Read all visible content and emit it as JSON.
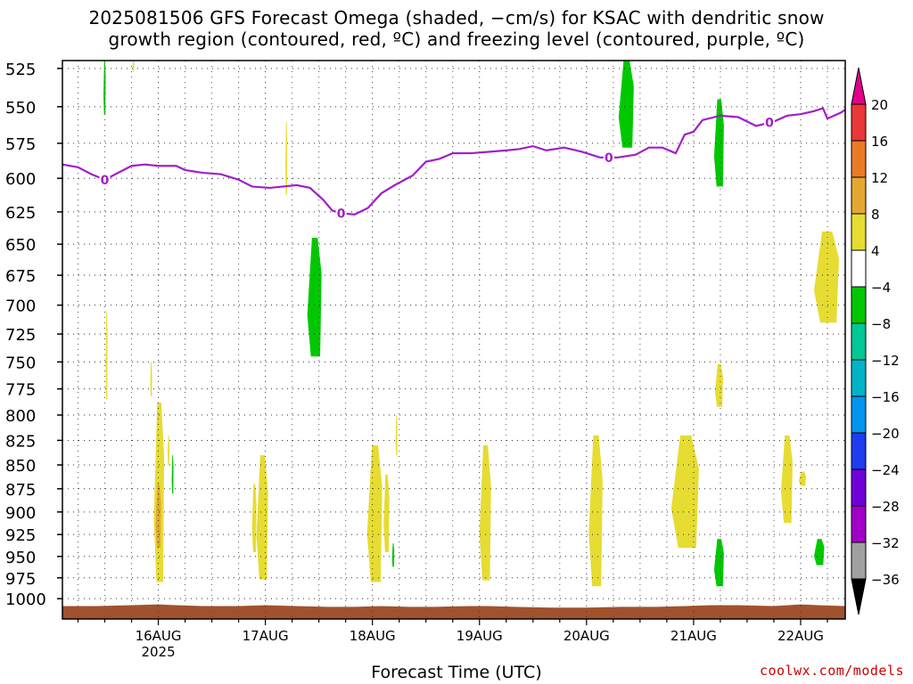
{
  "title_line1": "2025081506 GFS Forecast Omega (shaded, −cm/s) for KSAC with dendritic snow",
  "title_line2": "growth region (contoured, red, ºC) and freezing level (contoured, purple, ºC)",
  "xlabel": "Forecast Time (UTC)",
  "credit": "coolwx.com/models",
  "colorbar": {
    "labels": [
      "20",
      "16",
      "12",
      "8",
      "4",
      "−4",
      "−8",
      "−12",
      "−16",
      "−20",
      "−24",
      "−28",
      "−32",
      "−36"
    ],
    "bands": [
      {
        "from": 16,
        "to": 20,
        "color": "#e83838"
      },
      {
        "from": 12,
        "to": 16,
        "color": "#ea7a28"
      },
      {
        "from": 8,
        "to": 12,
        "color": "#e2a830"
      },
      {
        "from": 4,
        "to": 8,
        "color": "#e6dc32"
      },
      {
        "from": -4,
        "to": 4,
        "color": "#ffffff"
      },
      {
        "from": -8,
        "to": -4,
        "color": "#00c800"
      },
      {
        "from": -12,
        "to": -8,
        "color": "#00c896"
      },
      {
        "from": -16,
        "to": -12,
        "color": "#00b4c8"
      },
      {
        "from": -20,
        "to": -16,
        "color": "#0096f0"
      },
      {
        "from": -24,
        "to": -20,
        "color": "#1e3cf0"
      },
      {
        "from": -28,
        "to": -24,
        "color": "#7000d8"
      },
      {
        "from": -32,
        "to": -28,
        "color": "#a000c8"
      },
      {
        "from": -36,
        "to": -32,
        "color": "#a0a0a0"
      }
    ],
    "top_triangle_color": "#e0008c",
    "bottom_triangle_color": "#000000"
  },
  "chart_data": {
    "type": "heatmap",
    "title": "2025081506 GFS Forecast Omega (shaded, −cm/s) for KSAC with dendritic snow growth region (contoured, red, ºC) and freezing level (contoured, purple, ºC)",
    "xlabel": "Forecast Time (UTC)",
    "ylabel": "",
    "x_range_hours_after_16AUG_00Z": [
      -21.5,
      154
    ],
    "y_range_hPa": [
      520,
      1025
    ],
    "x_ticks": [
      {
        "label": "16AUG",
        "sub": "2025",
        "hour": 0
      },
      {
        "label": "17AUG",
        "sub": "",
        "hour": 24
      },
      {
        "label": "18AUG",
        "sub": "",
        "hour": 48
      },
      {
        "label": "19AUG",
        "sub": "",
        "hour": 72
      },
      {
        "label": "20AUG",
        "sub": "",
        "hour": 96
      },
      {
        "label": "21AUG",
        "sub": "",
        "hour": 120
      },
      {
        "label": "22AUG",
        "sub": "",
        "hour": 144
      }
    ],
    "y_ticks": [
      525,
      550,
      575,
      600,
      625,
      650,
      675,
      700,
      725,
      750,
      775,
      800,
      825,
      850,
      875,
      900,
      925,
      950,
      975,
      1000
    ],
    "grid": true,
    "freezing_level": {
      "label": "0",
      "color": "#a020c8",
      "points": [
        [
          -21.5,
          590
        ],
        [
          -18,
          592
        ],
        [
          -15,
          597
        ],
        [
          -12,
          601
        ],
        [
          -9,
          596
        ],
        [
          -6,
          591
        ],
        [
          -3,
          590
        ],
        [
          0,
          591
        ],
        [
          4,
          591
        ],
        [
          6,
          594
        ],
        [
          10,
          596
        ],
        [
          14,
          597
        ],
        [
          18,
          601
        ],
        [
          21,
          606
        ],
        [
          25,
          607
        ],
        [
          28,
          606
        ],
        [
          31,
          605
        ],
        [
          34,
          607
        ],
        [
          37,
          616
        ],
        [
          39,
          624
        ],
        [
          41,
          626
        ],
        [
          44,
          627
        ],
        [
          47,
          622
        ],
        [
          50,
          611
        ],
        [
          53,
          605
        ],
        [
          57,
          598
        ],
        [
          60,
          588
        ],
        [
          63,
          586
        ],
        [
          66,
          582
        ],
        [
          70,
          582
        ],
        [
          74,
          581
        ],
        [
          78,
          580
        ],
        [
          81,
          579
        ],
        [
          84,
          577
        ],
        [
          87,
          580
        ],
        [
          91,
          578
        ],
        [
          95,
          581
        ],
        [
          99,
          585
        ],
        [
          103,
          585
        ],
        [
          107,
          583
        ],
        [
          110,
          578
        ],
        [
          113,
          578
        ],
        [
          116,
          582
        ],
        [
          118,
          569
        ],
        [
          120,
          567
        ],
        [
          122,
          559
        ],
        [
          126,
          556
        ],
        [
          130,
          557
        ],
        [
          134,
          563
        ],
        [
          138,
          560
        ],
        [
          141,
          556
        ],
        [
          144,
          555
        ],
        [
          147,
          553
        ],
        [
          149,
          551
        ],
        [
          150,
          558
        ],
        [
          153,
          554
        ],
        [
          154,
          552
        ]
      ],
      "label_hours": [
        -12,
        41,
        101,
        137
      ]
    },
    "shaded_regions": [
      {
        "value": -6,
        "x": [
          -12.3,
          -11.8
        ],
        "p": [
          520,
          555
        ]
      },
      {
        "value": 5,
        "x": [
          -5.8,
          -5.4
        ],
        "p": [
          520,
          527
        ]
      },
      {
        "value": 5,
        "x": [
          -11.8,
          -11.4
        ],
        "p": [
          705,
          785
        ]
      },
      {
        "value": 5,
        "x": [
          -1.8,
          -1.4
        ],
        "p": [
          750,
          782
        ]
      },
      {
        "value": 5,
        "x": [
          -1,
          1.3
        ],
        "p": [
          788,
          980
        ]
      },
      {
        "value": 10,
        "x": [
          -0.6,
          0.6
        ],
        "p": [
          870,
          940
        ]
      },
      {
        "value": 5,
        "x": [
          2.1,
          2.5
        ],
        "p": [
          820,
          850
        ]
      },
      {
        "value": -6,
        "x": [
          3.0,
          3.4
        ],
        "p": [
          840,
          880
        ]
      },
      {
        "value": 5,
        "x": [
          28.5,
          28.9
        ],
        "p": [
          560,
          612
        ]
      },
      {
        "value": 5,
        "x": [
          22,
          24.6
        ],
        "p": [
          840,
          977
        ]
      },
      {
        "value": 5,
        "x": [
          21,
          22
        ],
        "p": [
          870,
          945
        ]
      },
      {
        "value": -6,
        "x": [
          33.4,
          36.6
        ],
        "p": [
          645,
          745
        ]
      },
      {
        "value": 5,
        "x": [
          46.8,
          50.2
        ],
        "p": [
          830,
          980
        ]
      },
      {
        "value": 5,
        "x": [
          50.5,
          51.8
        ],
        "p": [
          860,
          945
        ]
      },
      {
        "value": 5,
        "x": [
          53.2,
          53.6
        ],
        "p": [
          800,
          840
        ]
      },
      {
        "value": -6,
        "x": [
          52.4,
          52.9
        ],
        "p": [
          935,
          962
        ]
      },
      {
        "value": 5,
        "x": [
          72,
          74.6
        ],
        "p": [
          830,
          978
        ]
      },
      {
        "value": 5,
        "x": [
          96.5,
          99.6
        ],
        "p": [
          820,
          985
        ]
      },
      {
        "value": -6,
        "x": [
          103.2,
          106.6
        ],
        "p": [
          520,
          578
        ]
      },
      {
        "value": 5,
        "x": [
          115,
          121.2
        ],
        "p": [
          820,
          940
        ]
      },
      {
        "value": -6,
        "x": [
          124.6,
          126.8
        ],
        "p": [
          545,
          606
        ]
      },
      {
        "value": 5,
        "x": [
          124.8,
          126.6
        ],
        "p": [
          752,
          792
        ]
      },
      {
        "value": -6,
        "x": [
          124.6,
          126.8
        ],
        "p": [
          930,
          985
        ]
      },
      {
        "value": 5,
        "x": [
          139.6,
          142.2
        ],
        "p": [
          820,
          912
        ]
      },
      {
        "value": 5,
        "x": [
          143.6,
          145.2
        ],
        "p": [
          857,
          872
        ]
      },
      {
        "value": 5,
        "x": [
          147,
          152.6
        ],
        "p": [
          640,
          715
        ]
      },
      {
        "value": -6,
        "x": [
          147,
          149.3
        ],
        "p": [
          930,
          960
        ]
      }
    ],
    "terrain": {
      "color": "#a0522d",
      "surface_p": [
        [
          -21.5,
          1009
        ],
        [
          -14,
          1009
        ],
        [
          -6,
          1008
        ],
        [
          0,
          1007
        ],
        [
          4,
          1008
        ],
        [
          10,
          1009
        ],
        [
          18,
          1009
        ],
        [
          24,
          1008
        ],
        [
          31,
          1009
        ],
        [
          38,
          1010
        ],
        [
          44,
          1010
        ],
        [
          50,
          1009
        ],
        [
          56,
          1010
        ],
        [
          62,
          1010
        ],
        [
          70,
          1009
        ],
        [
          74,
          1009
        ],
        [
          80,
          1010
        ],
        [
          88,
          1011
        ],
        [
          96,
          1011
        ],
        [
          104,
          1010
        ],
        [
          112,
          1010
        ],
        [
          118,
          1009
        ],
        [
          124,
          1008
        ],
        [
          130,
          1008
        ],
        [
          138,
          1009
        ],
        [
          144,
          1007
        ],
        [
          148,
          1008
        ],
        [
          154,
          1009
        ]
      ],
      "bottom_p": 1025
    }
  }
}
